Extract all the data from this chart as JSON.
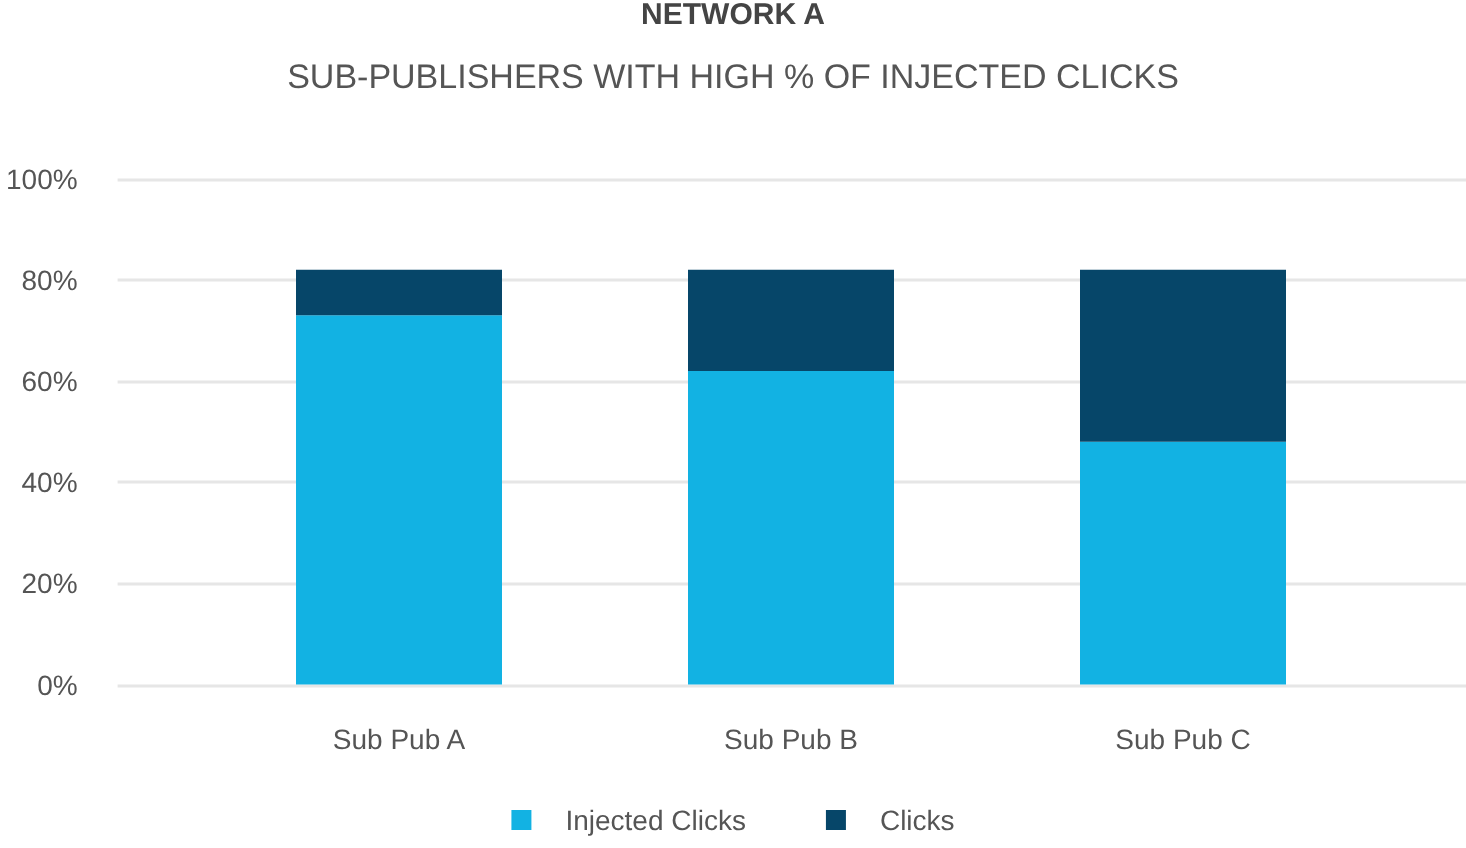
{
  "chart_data": {
    "type": "bar",
    "title": "NETWORK A",
    "subtitle": "SUB-PUBLISHERS WITH HIGH % OF INJECTED CLICKS",
    "categories": [
      "Sub Pub A",
      "Sub Pub B",
      "Sub Pub C"
    ],
    "series": [
      {
        "name": "Injected Clicks",
        "color": "#12b2e3",
        "values": [
          73,
          62,
          48
        ]
      },
      {
        "name": "Clicks",
        "color": "#064669",
        "values": [
          9,
          20,
          34
        ]
      }
    ],
    "stacked": true,
    "ylim": [
      0,
      100
    ],
    "yticks": [
      {
        "value": 0,
        "label": "0%"
      },
      {
        "value": 20,
        "label": "20%"
      },
      {
        "value": 40,
        "label": "40%"
      },
      {
        "value": 60,
        "label": "60%"
      },
      {
        "value": 80,
        "label": "80%"
      },
      {
        "value": 100,
        "label": "100%"
      }
    ],
    "grid": "y",
    "legend": "bottom"
  }
}
